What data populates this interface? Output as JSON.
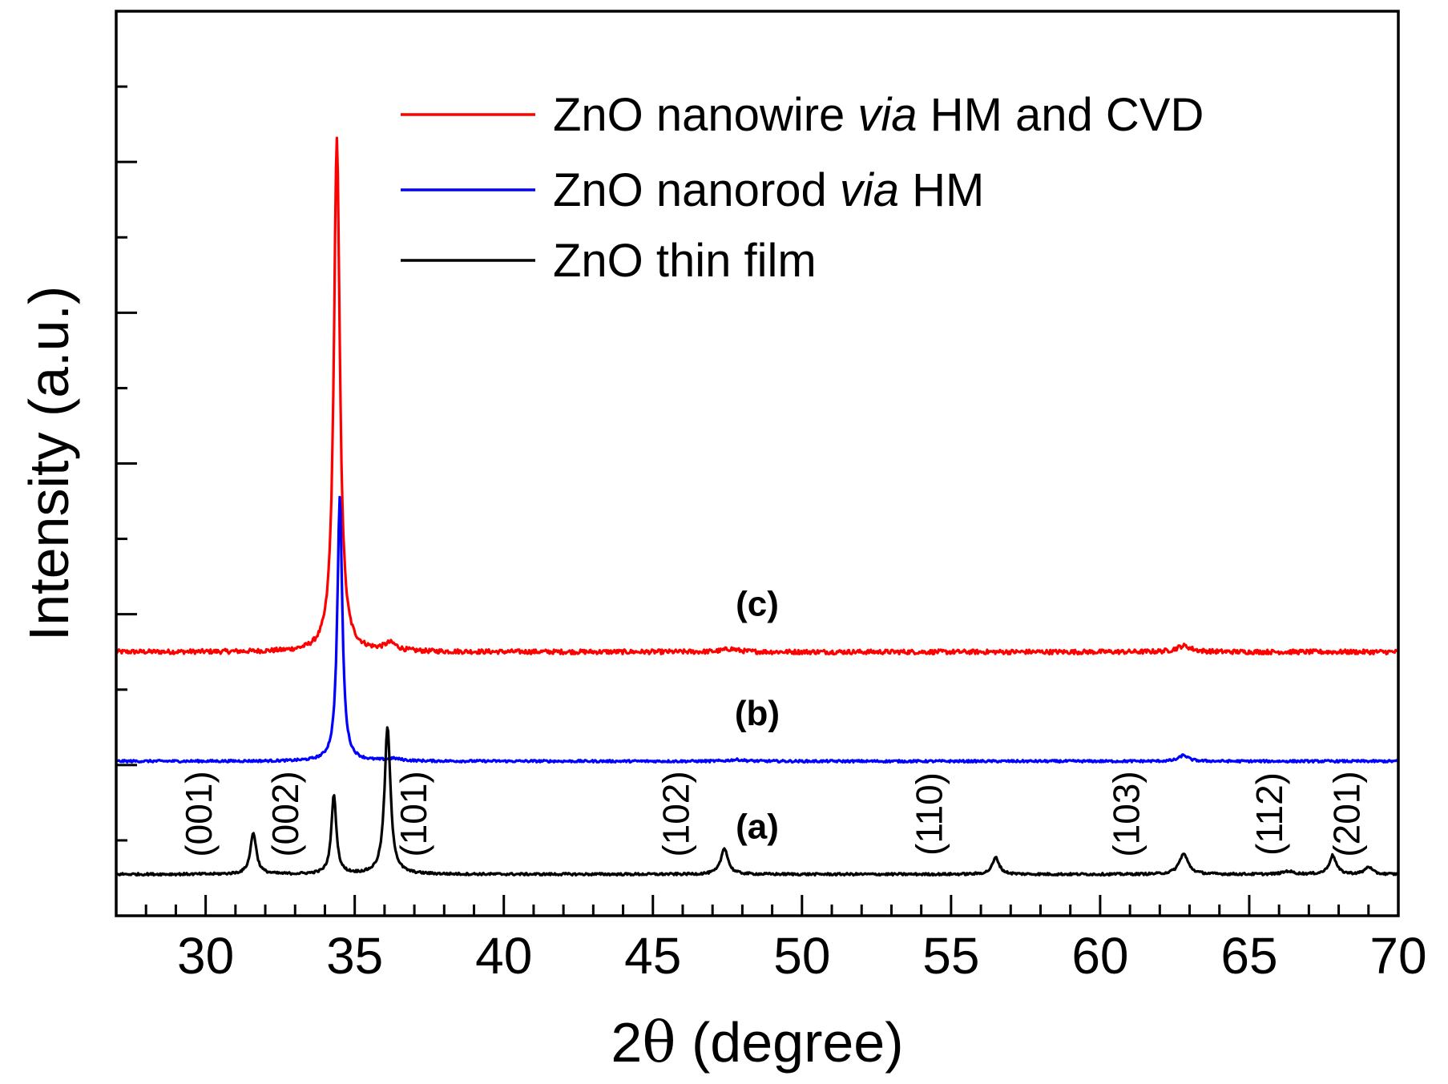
{
  "chart_data": {
    "type": "line",
    "title": "",
    "xlabel_prefix": "2",
    "xlabel_symbol": "θ",
    "xlabel_suffix": " (degree)",
    "ylabel": "Intensity (a.u.)",
    "xlim": [
      27,
      70
    ],
    "ylim": [
      0,
      12
    ],
    "x_ticks": [
      30,
      35,
      40,
      45,
      50,
      55,
      60,
      65,
      70
    ],
    "x_tick_labels": [
      "30",
      "35",
      "40",
      "45",
      "50",
      "55",
      "60",
      "65",
      "70"
    ],
    "y_tick_labels_shown": false,
    "legend": {
      "position": "top-right",
      "entries": [
        {
          "series": "nanowire",
          "parts": [
            {
              "text": "ZnO nanowire ",
              "italic": false
            },
            {
              "text": "via",
              "italic": true
            },
            {
              "text": " HM and CVD",
              "italic": false
            }
          ]
        },
        {
          "series": "nanorod",
          "parts": [
            {
              "text": "ZnO nanorod ",
              "italic": false
            },
            {
              "text": "via",
              "italic": true
            },
            {
              "text": " HM",
              "italic": false
            }
          ]
        },
        {
          "series": "thinfilm",
          "parts": [
            {
              "text": "ZnO thin film",
              "italic": false
            }
          ]
        }
      ]
    },
    "series": [
      {
        "id": "nanowire",
        "name": "ZnO nanowire via HM and CVD",
        "trace_label": "(c)",
        "trace_label_x": 48.5,
        "color": "#ff0000",
        "baseline": 3.5,
        "noise": 0.03,
        "peaks": [
          {
            "x": 34.4,
            "height": 6.8,
            "width": 0.12
          },
          {
            "x": 36.2,
            "height": 0.1,
            "width": 0.25
          },
          {
            "x": 47.6,
            "height": 0.04,
            "width": 0.3
          },
          {
            "x": 62.8,
            "height": 0.08,
            "width": 0.3
          }
        ]
      },
      {
        "id": "nanorod",
        "name": "ZnO nanorod via HM",
        "trace_label": "(b)",
        "trace_label_x": 48.5,
        "color": "#0000ff",
        "baseline": 2.05,
        "noise": 0.015,
        "peaks": [
          {
            "x": 34.5,
            "height": 3.5,
            "width": 0.1
          },
          {
            "x": 36.3,
            "height": 0.03,
            "width": 0.3
          },
          {
            "x": 47.8,
            "height": 0.02,
            "width": 0.3
          },
          {
            "x": 62.8,
            "height": 0.08,
            "width": 0.18
          }
        ]
      },
      {
        "id": "thinfilm",
        "name": "ZnO thin film",
        "trace_label": "(a)",
        "trace_label_x": 48.5,
        "color": "#000000",
        "baseline": 0.55,
        "noise": 0.015,
        "peaks": [
          {
            "x": 31.6,
            "height": 0.55,
            "width": 0.12
          },
          {
            "x": 34.3,
            "height": 1.05,
            "width": 0.1
          },
          {
            "x": 36.1,
            "height": 1.95,
            "width": 0.12
          },
          {
            "x": 47.4,
            "height": 0.35,
            "width": 0.14
          },
          {
            "x": 56.5,
            "height": 0.22,
            "width": 0.14
          },
          {
            "x": 62.8,
            "height": 0.27,
            "width": 0.18
          },
          {
            "x": 66.3,
            "height": 0.04,
            "width": 0.2
          },
          {
            "x": 67.8,
            "height": 0.25,
            "width": 0.14
          },
          {
            "x": 69.0,
            "height": 0.1,
            "width": 0.14
          }
        ]
      }
    ],
    "annotations": [
      {
        "text": "(001)",
        "x": 30.2,
        "y": 1.35
      },
      {
        "text": "(002)",
        "x": 33.1,
        "y": 1.35
      },
      {
        "text": "(101)",
        "x": 37.4,
        "y": 1.35
      },
      {
        "text": "(102)",
        "x": 46.2,
        "y": 1.35
      },
      {
        "text": "(110)",
        "x": 54.7,
        "y": 1.35
      },
      {
        "text": "(103)",
        "x": 61.3,
        "y": 1.35
      },
      {
        "text": "(112)",
        "x": 66.1,
        "y": 1.35
      },
      {
        "text": "(201)",
        "x": 68.7,
        "y": 1.35
      }
    ]
  }
}
